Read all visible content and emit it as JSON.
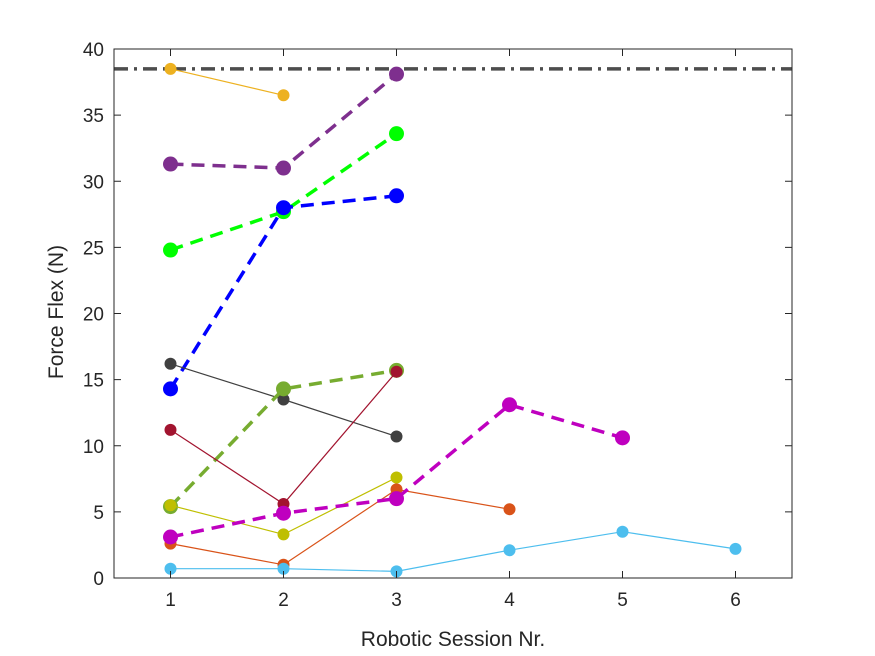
{
  "chart_data": {
    "type": "line",
    "xlabel": "Robotic Session Nr.",
    "ylabel": "Force Flex (N)",
    "xlim": [
      0.5,
      6.5
    ],
    "ylim": [
      0,
      40
    ],
    "xticks": [
      1,
      2,
      3,
      4,
      5,
      6
    ],
    "yticks": [
      0,
      5,
      10,
      15,
      20,
      25,
      30,
      35,
      40
    ],
    "grid": false,
    "reference_line": {
      "y": 38.5,
      "color": "#4d4d4d",
      "style": "dash-dot"
    },
    "series": [
      {
        "color": "#EDB120",
        "style": "solid",
        "x": [
          1,
          2
        ],
        "y": [
          38.5,
          36.5
        ]
      },
      {
        "color": "#7E2F8E",
        "style": "dashed",
        "x": [
          1,
          2,
          3
        ],
        "y": [
          31.3,
          31.0,
          38.1
        ]
      },
      {
        "color": "#00FF00",
        "style": "dashed",
        "x": [
          1,
          2,
          3
        ],
        "y": [
          24.8,
          27.7,
          33.6
        ]
      },
      {
        "color": "#0000FF",
        "style": "dashed",
        "x": [
          1,
          2,
          3
        ],
        "y": [
          14.3,
          28.0,
          28.9
        ]
      },
      {
        "color": "#404040",
        "style": "solid",
        "x": [
          1,
          2,
          3
        ],
        "y": [
          16.2,
          13.5,
          10.7
        ]
      },
      {
        "color": "#77AC30",
        "style": "dashed",
        "x": [
          1,
          2,
          3
        ],
        "y": [
          5.4,
          14.3,
          15.7
        ]
      },
      {
        "color": "#A2142F",
        "style": "solid",
        "x": [
          1,
          2,
          3
        ],
        "y": [
          11.2,
          5.6,
          15.6
        ]
      },
      {
        "color": "#BFBF00",
        "style": "solid",
        "x": [
          1,
          2,
          3
        ],
        "y": [
          5.5,
          3.3,
          7.6
        ]
      },
      {
        "color": "#D95319",
        "style": "solid",
        "x": [
          1,
          2,
          3,
          4
        ],
        "y": [
          2.6,
          1.0,
          6.7,
          5.2
        ]
      },
      {
        "color": "#BF00BF",
        "style": "dashed",
        "x": [
          1,
          2,
          3,
          4,
          5
        ],
        "y": [
          3.1,
          4.9,
          6.0,
          13.1,
          10.6
        ]
      },
      {
        "color": "#4DBEEE",
        "style": "solid",
        "x": [
          1,
          2,
          3,
          4,
          5,
          6
        ],
        "y": [
          0.7,
          0.7,
          0.5,
          2.1,
          3.5,
          2.2
        ]
      }
    ]
  }
}
